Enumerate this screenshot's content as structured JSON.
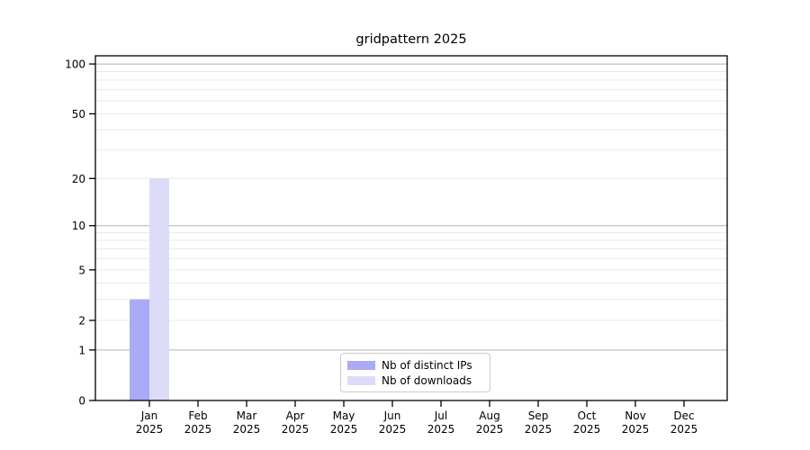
{
  "title": "gridpattern 2025",
  "legend": {
    "items": [
      {
        "label": "Nb of distinct IPs",
        "color": "#aaaaf7"
      },
      {
        "label": "Nb of downloads",
        "color": "#dcdcf9"
      }
    ]
  },
  "chart_data": {
    "type": "bar",
    "title": "gridpattern 2025",
    "categories": [
      "Jan 2025",
      "Feb 2025",
      "Mar 2025",
      "Apr 2025",
      "May 2025",
      "Jun 2025",
      "Jul 2025",
      "Aug 2025",
      "Sep 2025",
      "Oct 2025",
      "Nov 2025",
      "Dec 2025"
    ],
    "series": [
      {
        "name": "Nb of distinct IPs",
        "color": "#aaaaf7",
        "values": [
          3,
          0,
          0,
          0,
          0,
          0,
          0,
          0,
          0,
          0,
          0,
          0
        ]
      },
      {
        "name": "Nb of downloads",
        "color": "#dcdcf9",
        "values": [
          20,
          0,
          0,
          0,
          0,
          0,
          0,
          0,
          0,
          0,
          0,
          0
        ]
      }
    ],
    "xlabel": "",
    "ylabel": "",
    "y_axis": {
      "scale": "log1p",
      "tick_values": [
        0,
        1,
        2,
        5,
        10,
        20,
        50,
        100
      ],
      "tick_labels": [
        "0",
        "1",
        "2",
        "5",
        "10",
        "20",
        "50",
        "100"
      ],
      "major_gridlines": [
        1,
        10,
        100
      ],
      "minor_gridlines": [
        2,
        3,
        4,
        5,
        6,
        7,
        8,
        9,
        20,
        30,
        40,
        50,
        60,
        70,
        80,
        90
      ],
      "max": 112
    },
    "grid": true,
    "legend_position": "lower center",
    "colors": {
      "axis": "#000000",
      "grid_major": "#b0b0b0",
      "grid_minor": "#e9e9e9",
      "background": "#ffffff"
    }
  }
}
